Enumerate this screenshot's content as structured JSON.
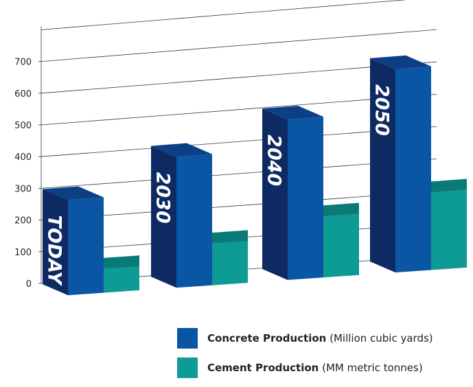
{
  "chart_data": {
    "type": "bar",
    "categories": [
      "TODAY",
      "2030",
      "2040",
      "2050"
    ],
    "series": [
      {
        "name": "Concrete Production",
        "unit": "(Million cubic yards)",
        "values": [
          300,
          410,
          500,
          630
        ]
      },
      {
        "name": "Cement Production",
        "unit": "(MM metric tonnes)",
        "values": [
          75,
          130,
          190,
          240
        ]
      }
    ],
    "yticks": [
      0,
      100,
      200,
      300,
      400,
      500,
      600,
      700
    ],
    "ylim": [
      0,
      800
    ],
    "grid": true,
    "legend": "bottom"
  },
  "colors": {
    "concrete_front": "#0b56a4",
    "concrete_side": "#0e2a63",
    "concrete_top": "#0c3f86",
    "cement_front": "#0e9a95",
    "cement_side": "#0a6e6b",
    "cement_top": "#0a7a76"
  }
}
